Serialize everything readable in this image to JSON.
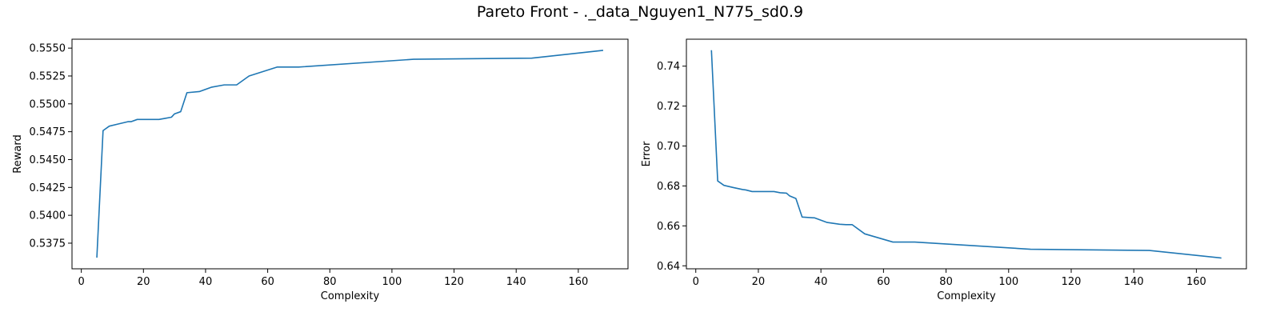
{
  "figure": {
    "title": "Pareto Front - ._data_Nguyen1_N775_sd0.9"
  },
  "colors": {
    "line": "#1f77b4",
    "axis": "#000000"
  },
  "chart_data": [
    {
      "type": "line",
      "xlabel": "Complexity",
      "ylabel": "Reward",
      "xlim": [
        -3,
        176
      ],
      "ylim": [
        0.5352,
        0.5558
      ],
      "xticks": [
        0,
        20,
        40,
        60,
        80,
        100,
        120,
        140,
        160
      ],
      "yticks": [
        0.5375,
        0.54,
        0.5425,
        0.545,
        0.5475,
        0.55,
        0.5525,
        0.555
      ],
      "ytick_labels": [
        "0.5375",
        "0.5400",
        "0.5425",
        "0.5450",
        "0.5475",
        "0.5500",
        "0.5525",
        "0.5550"
      ],
      "grid": false,
      "series": [
        {
          "x": [
            5,
            7,
            9,
            12,
            15,
            16,
            18,
            20,
            22,
            25,
            27,
            29,
            30,
            32,
            34,
            38,
            42,
            46,
            48,
            50,
            54,
            63,
            70,
            107,
            145,
            168
          ],
          "y": [
            0.5362,
            0.5476,
            0.548,
            0.5482,
            0.5484,
            0.5484,
            0.5486,
            0.5486,
            0.5486,
            0.5486,
            0.5487,
            0.5488,
            0.5491,
            0.5493,
            0.551,
            0.5511,
            0.5515,
            0.5517,
            0.5517,
            0.5517,
            0.5525,
            0.5533,
            0.5533,
            0.554,
            0.5541,
            0.5548
          ]
        }
      ]
    },
    {
      "type": "line",
      "xlabel": "Complexity",
      "ylabel": "Error",
      "xlim": [
        -3,
        176
      ],
      "ylim": [
        0.6385,
        0.7535
      ],
      "xticks": [
        0,
        20,
        40,
        60,
        80,
        100,
        120,
        140,
        160
      ],
      "yticks": [
        0.64,
        0.66,
        0.68,
        0.7,
        0.72,
        0.74
      ],
      "ytick_labels": [
        "0.64",
        "0.66",
        "0.68",
        "0.70",
        "0.72",
        "0.74"
      ],
      "grid": false,
      "series": [
        {
          "x": [
            5,
            7,
            9,
            12,
            15,
            16,
            18,
            20,
            22,
            25,
            27,
            29,
            30,
            32,
            34,
            38,
            42,
            46,
            48,
            50,
            54,
            63,
            70,
            107,
            145,
            168
          ],
          "y": [
            0.748,
            0.6825,
            0.6803,
            0.6792,
            0.6782,
            0.678,
            0.6772,
            0.6772,
            0.6772,
            0.6772,
            0.6766,
            0.6764,
            0.675,
            0.6737,
            0.6644,
            0.664,
            0.6617,
            0.6608,
            0.6606,
            0.6606,
            0.656,
            0.6519,
            0.6519,
            0.6483,
            0.6477,
            0.6439
          ]
        }
      ]
    }
  ]
}
